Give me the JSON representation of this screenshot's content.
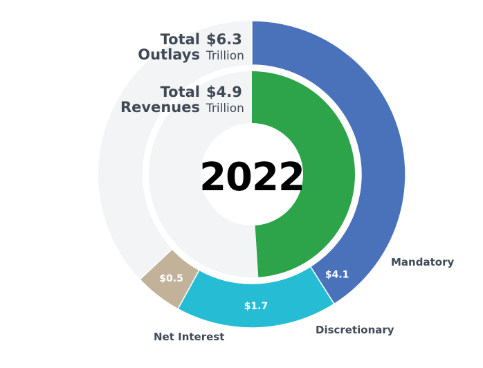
{
  "chart_data": {
    "type": "pie",
    "year": "2022",
    "unit": "Trillion",
    "outer_ring": {
      "label": "Total Outlays",
      "label_line1": "Total",
      "label_line2": "Outlays",
      "total": 6.3,
      "total_text": "$6.3",
      "slices": [
        {
          "name": "Mandatory",
          "value": 4.1,
          "value_text": "$4.1",
          "color": "#4a72bb"
        },
        {
          "name": "Discretionary",
          "value": 1.7,
          "value_text": "$1.7",
          "color": "#26bdd4"
        },
        {
          "name": "Net Interest",
          "value": 0.5,
          "value_text": "$0.5",
          "color": "#c1b299"
        }
      ]
    },
    "inner_ring": {
      "label": "Total Revenues",
      "label_line1": "Total",
      "label_line2": "Revenues",
      "total": 4.9,
      "total_text": "$4.9",
      "color": "#2ea44a"
    },
    "background_color": "#f3f4f6"
  }
}
